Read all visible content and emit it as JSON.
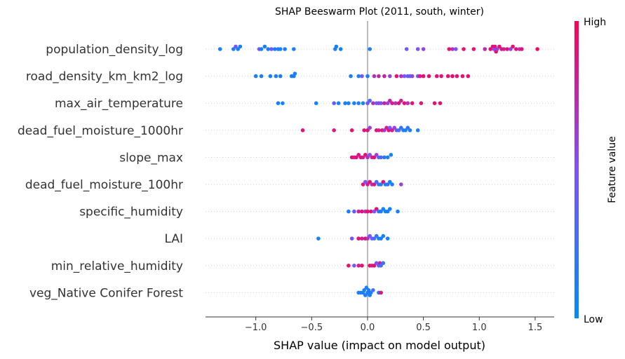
{
  "chart_data": {
    "type": "scatter",
    "subtype": "beeswarm",
    "title": "SHAP Beeswarm Plot (2011, south, winter)",
    "xlabel": "SHAP value (impact on model output)",
    "xlim": [
      -1.45,
      1.67
    ],
    "xticks": [
      -1.0,
      -0.5,
      0.0,
      0.5,
      1.0,
      1.5
    ],
    "xtick_labels": [
      "−1.0",
      "−0.5",
      "0.0",
      "0.5",
      "1.0",
      "1.5"
    ],
    "colorbar": {
      "label": "Feature value",
      "high": "High",
      "low": "Low",
      "low_color": "#008bfb",
      "mid_color": "#7c52ff",
      "high_color": "#ff0052"
    },
    "zero_line_color": "#999999",
    "features": [
      {
        "name": "population_density_log",
        "points": [
          [
            -1.32,
            0.1
          ],
          [
            -1.2,
            0.1
          ],
          [
            -1.18,
            0.5
          ],
          [
            -1.16,
            0.1
          ],
          [
            -1.14,
            0.1
          ],
          [
            -0.97,
            0.5
          ],
          [
            -0.95,
            0.1
          ],
          [
            -0.92,
            0.1
          ],
          [
            -0.89,
            0.1
          ],
          [
            -0.86,
            0.5
          ],
          [
            -0.83,
            0.1
          ],
          [
            -0.8,
            0.1
          ],
          [
            -0.78,
            0.1
          ],
          [
            -0.74,
            0.1
          ],
          [
            -0.66,
            0.1
          ],
          [
            -0.29,
            0.1
          ],
          [
            -0.28,
            0.1
          ],
          [
            -0.24,
            0.1
          ],
          [
            0.02,
            0.1
          ],
          [
            0.35,
            0.45
          ],
          [
            0.45,
            0.5
          ],
          [
            0.5,
            0.6
          ],
          [
            0.73,
            0.9
          ],
          [
            0.76,
            0.7
          ],
          [
            0.79,
            0.5
          ],
          [
            0.86,
            0.9
          ],
          [
            0.95,
            0.9
          ],
          [
            1.05,
            0.75
          ],
          [
            1.1,
            0.95
          ],
          [
            1.12,
            0.9
          ],
          [
            1.13,
            0.5
          ],
          [
            1.14,
            0.9
          ],
          [
            1.15,
            0.95
          ],
          [
            1.16,
            0.6
          ],
          [
            1.18,
            0.9
          ],
          [
            1.2,
            0.9
          ],
          [
            1.22,
            0.8
          ],
          [
            1.25,
            0.9
          ],
          [
            1.28,
            0.6
          ],
          [
            1.3,
            0.9
          ],
          [
            1.33,
            0.9
          ],
          [
            1.36,
            0.7
          ],
          [
            1.38,
            0.9
          ],
          [
            1.52,
            0.95
          ]
        ]
      },
      {
        "name": "road_density_km_km2_log",
        "points": [
          [
            -1.0,
            0.1
          ],
          [
            -0.95,
            0.1
          ],
          [
            -0.87,
            0.1
          ],
          [
            -0.82,
            0.1
          ],
          [
            -0.78,
            0.1
          ],
          [
            -0.68,
            0.1
          ],
          [
            -0.65,
            0.1
          ],
          [
            -0.66,
            0.1
          ],
          [
            -0.15,
            0.1
          ],
          [
            -0.08,
            0.1
          ],
          [
            -0.05,
            0.5
          ],
          [
            0.0,
            0.1
          ],
          [
            0.06,
            0.7
          ],
          [
            0.1,
            0.75
          ],
          [
            0.15,
            0.8
          ],
          [
            0.2,
            0.6
          ],
          [
            0.26,
            0.9
          ],
          [
            0.3,
            0.7
          ],
          [
            0.33,
            0.5
          ],
          [
            0.36,
            0.4
          ],
          [
            0.38,
            0.35
          ],
          [
            0.4,
            0.6
          ],
          [
            0.45,
            0.5
          ],
          [
            0.47,
            0.85
          ],
          [
            0.5,
            0.9
          ],
          [
            0.55,
            0.9
          ],
          [
            0.62,
            0.9
          ],
          [
            0.66,
            0.9
          ],
          [
            0.72,
            0.9
          ],
          [
            0.76,
            0.95
          ],
          [
            0.8,
            0.9
          ],
          [
            0.85,
            0.9
          ],
          [
            0.9,
            0.9
          ]
        ]
      },
      {
        "name": "max_air_temperature",
        "points": [
          [
            -0.8,
            0.1
          ],
          [
            -0.76,
            0.1
          ],
          [
            -0.46,
            0.1
          ],
          [
            -0.3,
            0.4
          ],
          [
            -0.26,
            0.1
          ],
          [
            -0.2,
            0.1
          ],
          [
            -0.17,
            0.1
          ],
          [
            -0.12,
            0.1
          ],
          [
            -0.08,
            0.1
          ],
          [
            -0.04,
            0.1
          ],
          [
            0.0,
            0.5
          ],
          [
            0.02,
            0.3
          ],
          [
            0.05,
            0.7
          ],
          [
            0.08,
            0.4
          ],
          [
            0.1,
            0.6
          ],
          [
            0.12,
            0.45
          ],
          [
            0.15,
            0.8
          ],
          [
            0.18,
            0.6
          ],
          [
            0.2,
            0.75
          ],
          [
            0.22,
            0.85
          ],
          [
            0.25,
            0.7
          ],
          [
            0.28,
            0.9
          ],
          [
            0.3,
            0.8
          ],
          [
            0.33,
            0.9
          ],
          [
            0.36,
            0.7
          ],
          [
            0.4,
            0.9
          ],
          [
            0.48,
            0.85
          ],
          [
            0.6,
            0.9
          ],
          [
            0.65,
            0.9
          ]
        ]
      },
      {
        "name": "dead_fuel_moisture_1000hr",
        "points": [
          [
            -0.58,
            0.9
          ],
          [
            -0.3,
            0.85
          ],
          [
            -0.14,
            0.9
          ],
          [
            -0.03,
            0.9
          ],
          [
            0.0,
            0.9
          ],
          [
            0.02,
            0.6
          ],
          [
            0.08,
            0.9
          ],
          [
            0.1,
            0.8
          ],
          [
            0.13,
            0.9
          ],
          [
            0.15,
            0.7
          ],
          [
            0.17,
            0.8
          ],
          [
            0.19,
            0.9
          ],
          [
            0.2,
            0.5
          ],
          [
            0.22,
            0.85
          ],
          [
            0.24,
            0.6
          ],
          [
            0.26,
            0.4
          ],
          [
            0.28,
            0.3
          ],
          [
            0.3,
            0.2
          ],
          [
            0.32,
            0.15
          ],
          [
            0.34,
            0.1
          ],
          [
            0.36,
            0.2
          ],
          [
            0.38,
            0.1
          ],
          [
            0.45,
            0.1
          ]
        ]
      },
      {
        "name": "slope_max",
        "points": [
          [
            -0.14,
            0.9
          ],
          [
            -0.12,
            0.8
          ],
          [
            -0.1,
            0.9
          ],
          [
            -0.08,
            0.85
          ],
          [
            -0.06,
            0.9
          ],
          [
            -0.04,
            0.8
          ],
          [
            -0.02,
            0.9
          ],
          [
            0.0,
            0.7
          ],
          [
            0.02,
            0.5
          ],
          [
            0.04,
            0.8
          ],
          [
            0.06,
            0.9
          ],
          [
            0.08,
            0.6
          ],
          [
            0.1,
            0.4
          ],
          [
            0.12,
            0.3
          ],
          [
            0.15,
            0.2
          ],
          [
            0.18,
            0.1
          ],
          [
            0.21,
            0.1
          ]
        ]
      },
      {
        "name": "dead_fuel_moisture_100hr",
        "points": [
          [
            -0.04,
            0.9
          ],
          [
            -0.02,
            0.5
          ],
          [
            0.0,
            0.8
          ],
          [
            0.02,
            0.9
          ],
          [
            0.04,
            0.7
          ],
          [
            0.06,
            0.9
          ],
          [
            0.08,
            0.3
          ],
          [
            0.1,
            0.2
          ],
          [
            0.12,
            0.1
          ],
          [
            0.14,
            0.9
          ],
          [
            0.16,
            0.1
          ],
          [
            0.18,
            0.2
          ],
          [
            0.2,
            0.1
          ],
          [
            0.22,
            0.1
          ],
          [
            0.3,
            0.6
          ]
        ]
      },
      {
        "name": "specific_humidity",
        "points": [
          [
            -0.17,
            0.1
          ],
          [
            -0.12,
            0.4
          ],
          [
            -0.08,
            0.8
          ],
          [
            -0.05,
            0.9
          ],
          [
            -0.02,
            0.7
          ],
          [
            0.0,
            0.9
          ],
          [
            0.03,
            0.9
          ],
          [
            0.06,
            0.5
          ],
          [
            0.08,
            0.9
          ],
          [
            0.1,
            0.2
          ],
          [
            0.12,
            0.1
          ],
          [
            0.14,
            0.1
          ],
          [
            0.16,
            0.1
          ],
          [
            0.18,
            0.1
          ],
          [
            0.2,
            0.1
          ],
          [
            0.27,
            0.1
          ]
        ]
      },
      {
        "name": "LAI",
        "points": [
          [
            -0.44,
            0.1
          ],
          [
            -0.14,
            0.5
          ],
          [
            -0.08,
            0.9
          ],
          [
            -0.05,
            0.8
          ],
          [
            -0.02,
            0.9
          ],
          [
            0.0,
            0.7
          ],
          [
            0.02,
            0.5
          ],
          [
            0.04,
            0.4
          ],
          [
            0.06,
            0.3
          ],
          [
            0.08,
            0.2
          ],
          [
            0.1,
            0.1
          ],
          [
            0.12,
            0.1
          ],
          [
            0.14,
            0.1
          ],
          [
            0.18,
            0.1
          ]
        ]
      },
      {
        "name": "min_relative_humidity",
        "points": [
          [
            -0.17,
            0.9
          ],
          [
            -0.12,
            0.5
          ],
          [
            -0.08,
            0.85
          ],
          [
            -0.05,
            0.9
          ],
          [
            0.02,
            0.95
          ],
          [
            0.04,
            0.85
          ],
          [
            0.06,
            0.9
          ],
          [
            0.08,
            0.5
          ],
          [
            0.1,
            0.4
          ],
          [
            0.12,
            0.3
          ],
          [
            0.14,
            0.2
          ],
          [
            0.11,
            0.8
          ]
        ]
      },
      {
        "name": "veg_Native Conifer Forest",
        "points": [
          [
            -0.08,
            0.1
          ],
          [
            -0.06,
            0.1
          ],
          [
            -0.04,
            0.1
          ],
          [
            -0.03,
            0.1
          ],
          [
            -0.02,
            0.1
          ],
          [
            -0.01,
            0.1
          ],
          [
            0.0,
            0.1
          ],
          [
            0.01,
            0.1
          ],
          [
            0.02,
            0.1
          ],
          [
            0.03,
            0.1
          ],
          [
            0.05,
            0.3
          ],
          [
            0.1,
            0.1
          ],
          [
            0.12,
            0.9
          ]
        ]
      }
    ]
  }
}
